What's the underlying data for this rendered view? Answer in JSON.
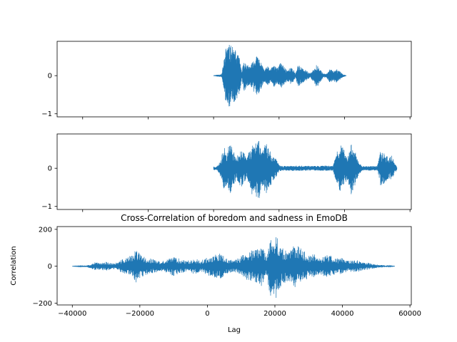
{
  "chart_data": [
    {
      "type": "line",
      "title": "",
      "xlabel": "",
      "ylabel": "",
      "xlim": [
        -47800,
        60400
      ],
      "ylim": [
        -1.08,
        0.9
      ],
      "xticks": [
        -40000,
        -20000,
        0,
        20000,
        40000,
        60000
      ],
      "xtick_labels_visible": false,
      "yticks": [
        -1,
        0
      ],
      "ytick_labels": [
        "−1",
        "0"
      ],
      "color": "#1f77b4",
      "series": [
        {
          "x_start": 0,
          "x_end": 40500,
          "envelope": [
            [
              0,
              0.01
            ],
            [
              2500,
              0.04
            ],
            [
              3300,
              0.5
            ],
            [
              4000,
              0.88
            ],
            [
              5000,
              0.8
            ],
            [
              6000,
              0.75
            ],
            [
              7000,
              0.62
            ],
            [
              8000,
              0.45
            ],
            [
              8600,
              0.08
            ],
            [
              9200,
              0.42
            ],
            [
              10000,
              0.32
            ],
            [
              10800,
              0.25
            ],
            [
              11500,
              0.3
            ],
            [
              12500,
              0.45
            ],
            [
              13500,
              0.55
            ],
            [
              14200,
              0.4
            ],
            [
              15500,
              0.15
            ],
            [
              16500,
              0.25
            ],
            [
              17500,
              0.18
            ],
            [
              18500,
              0.3
            ],
            [
              19500,
              0.2
            ],
            [
              20500,
              0.35
            ],
            [
              21500,
              0.25
            ],
            [
              22500,
              0.15
            ],
            [
              23500,
              0.22
            ],
            [
              24500,
              0.15
            ],
            [
              25000,
              0.05
            ],
            [
              25800,
              0.3
            ],
            [
              27000,
              0.2
            ],
            [
              28500,
              0.12
            ],
            [
              29500,
              0.06
            ],
            [
              30500,
              0.15
            ],
            [
              31500,
              0.32
            ],
            [
              32500,
              0.18
            ],
            [
              33500,
              0.05
            ],
            [
              34500,
              0.05
            ],
            [
              35500,
              0.18
            ],
            [
              36500,
              0.14
            ],
            [
              37500,
              0.18
            ],
            [
              38500,
              0.12
            ],
            [
              39500,
              0.04
            ],
            [
              40500,
              0.01
            ]
          ]
        }
      ]
    },
    {
      "type": "line",
      "title": "",
      "xlabel": "",
      "ylabel": "",
      "xlim": [
        -47800,
        60400
      ],
      "ylim": [
        -1.08,
        0.9
      ],
      "xticks": [
        -40000,
        -20000,
        0,
        20000,
        40000,
        60000
      ],
      "xtick_labels_visible": false,
      "yticks": [
        -1,
        0
      ],
      "ytick_labels": [
        "−1",
        "0"
      ],
      "color": "#1f77b4",
      "series": [
        {
          "x_start": 0,
          "x_end": 56000,
          "envelope": [
            [
              0,
              0.06
            ],
            [
              500,
              0.04
            ],
            [
              1000,
              0.05
            ],
            [
              1800,
              0.15
            ],
            [
              2500,
              0.35
            ],
            [
              3200,
              0.55
            ],
            [
              4000,
              0.45
            ],
            [
              5000,
              0.7
            ],
            [
              6000,
              0.5
            ],
            [
              7000,
              0.25
            ],
            [
              7800,
              0.45
            ],
            [
              8600,
              0.6
            ],
            [
              9300,
              0.4
            ],
            [
              10000,
              0.25
            ],
            [
              11000,
              0.5
            ],
            [
              11800,
              0.7
            ],
            [
              12600,
              0.55
            ],
            [
              13200,
              0.85
            ],
            [
              13800,
              0.95
            ],
            [
              14500,
              0.5
            ],
            [
              15200,
              0.55
            ],
            [
              16000,
              0.7
            ],
            [
              17000,
              0.55
            ],
            [
              18000,
              0.35
            ],
            [
              19000,
              0.25
            ],
            [
              20000,
              0.1
            ],
            [
              21000,
              0.06
            ],
            [
              25000,
              0.07
            ],
            [
              30000,
              0.06
            ],
            [
              34000,
              0.07
            ],
            [
              36500,
              0.06
            ],
            [
              37200,
              0.3
            ],
            [
              38000,
              0.5
            ],
            [
              39000,
              0.65
            ],
            [
              40000,
              0.45
            ],
            [
              41000,
              0.3
            ],
            [
              42000,
              0.7
            ],
            [
              43000,
              0.55
            ],
            [
              43800,
              0.3
            ],
            [
              44500,
              0.15
            ],
            [
              45500,
              0.06
            ],
            [
              50000,
              0.06
            ],
            [
              51000,
              0.45
            ],
            [
              52500,
              0.4
            ],
            [
              53500,
              0.3
            ],
            [
              54500,
              0.35
            ],
            [
              55200,
              0.15
            ],
            [
              56000,
              0.05
            ]
          ]
        }
      ]
    },
    {
      "type": "line",
      "title": "Cross-Correlation of boredom and sadness in EmoDB",
      "xlabel": "Lag",
      "ylabel": "Correlation",
      "xlim": [
        -44500,
        60400
      ],
      "ylim": [
        -210,
        215
      ],
      "xticks": [
        -40000,
        -20000,
        0,
        20000,
        40000,
        60000
      ],
      "xtick_labels": [
        "−40000",
        "−20000",
        "0",
        "20000",
        "40000",
        "60000"
      ],
      "xtick_labels_visible": true,
      "yticks": [
        -200,
        0,
        200
      ],
      "ytick_labels": [
        "−200",
        "0",
        "200"
      ],
      "color": "#1f77b4",
      "series": [
        {
          "x_start": -40000,
          "x_end": 55500,
          "envelope": [
            [
              -40000,
              1
            ],
            [
              -37000,
              3
            ],
            [
              -35000,
              8
            ],
            [
              -33500,
              22
            ],
            [
              -32000,
              18
            ],
            [
              -30000,
              25
            ],
            [
              -28000,
              15
            ],
            [
              -26500,
              22
            ],
            [
              -25000,
              40
            ],
            [
              -23000,
              55
            ],
            [
              -21000,
              90
            ],
            [
              -19500,
              60
            ],
            [
              -18000,
              45
            ],
            [
              -16000,
              40
            ],
            [
              -14000,
              25
            ],
            [
              -12000,
              35
            ],
            [
              -10000,
              55
            ],
            [
              -8000,
              40
            ],
            [
              -6000,
              30
            ],
            [
              -4000,
              45
            ],
            [
              -2000,
              30
            ],
            [
              0,
              50
            ],
            [
              2000,
              60
            ],
            [
              4000,
              70
            ],
            [
              6000,
              40
            ],
            [
              8000,
              30
            ],
            [
              10000,
              60
            ],
            [
              12000,
              80
            ],
            [
              14000,
              90
            ],
            [
              16000,
              110
            ],
            [
              17500,
              60
            ],
            [
              18500,
              150
            ],
            [
              19500,
              195
            ],
            [
              20500,
              170
            ],
            [
              22000,
              100
            ],
            [
              24000,
              80
            ],
            [
              26000,
              120
            ],
            [
              28000,
              95
            ],
            [
              30000,
              60
            ],
            [
              32000,
              70
            ],
            [
              34000,
              50
            ],
            [
              36000,
              65
            ],
            [
              38000,
              40
            ],
            [
              40000,
              50
            ],
            [
              42000,
              30
            ],
            [
              44000,
              35
            ],
            [
              46000,
              22
            ],
            [
              48000,
              18
            ],
            [
              50000,
              10
            ],
            [
              52000,
              6
            ],
            [
              54000,
              3
            ],
            [
              55500,
              1
            ]
          ]
        }
      ]
    }
  ]
}
